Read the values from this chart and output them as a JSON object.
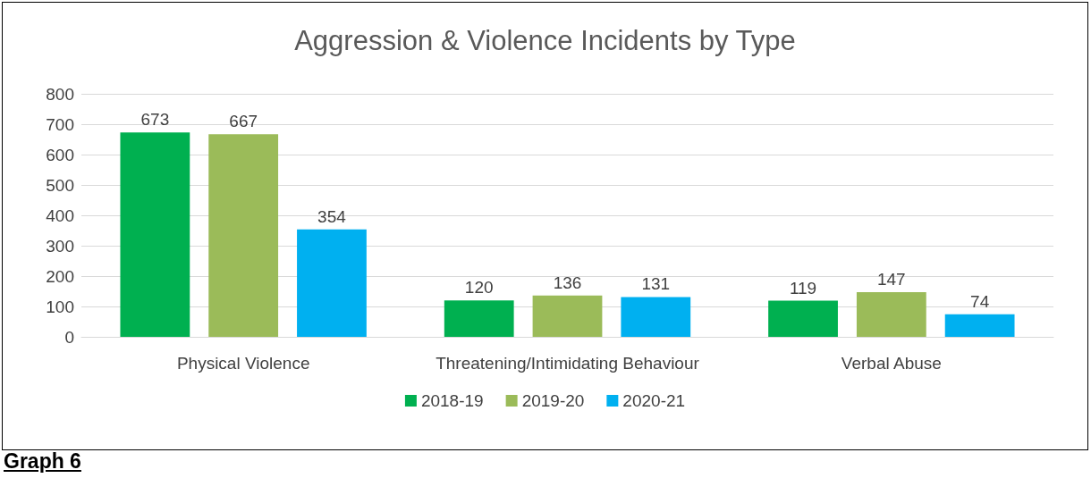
{
  "chart_data": {
    "type": "bar",
    "title": "Aggression & Violence Incidents by Type",
    "categories": [
      "Physical Violence",
      "Threatening/Intimidating Behaviour",
      "Verbal Abuse"
    ],
    "series": [
      {
        "name": "2018-19",
        "color": "#00b050",
        "values": [
          673,
          120,
          119
        ]
      },
      {
        "name": "2019-20",
        "color": "#9bbb59",
        "values": [
          667,
          136,
          147
        ]
      },
      {
        "name": "2020-21",
        "color": "#00b0f0",
        "values": [
          354,
          131,
          74
        ]
      }
    ],
    "ylim": [
      0,
      800
    ],
    "yticks": [
      0,
      100,
      200,
      300,
      400,
      500,
      600,
      700,
      800
    ],
    "grid": "y",
    "legend": "bottom",
    "data_labels": true,
    "annotations": [
      "Graph 6"
    ]
  }
}
